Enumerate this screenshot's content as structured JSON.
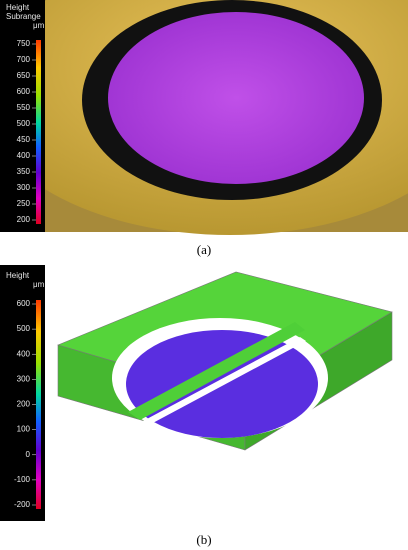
{
  "panels": [
    {
      "label": "(a)",
      "colorbar": {
        "title": [
          "Height",
          "Subrange"
        ],
        "unit": "μm",
        "ticks": [
          750,
          700,
          650,
          600,
          550,
          500,
          450,
          400,
          350,
          300,
          250,
          200
        ]
      }
    },
    {
      "label": "(b)",
      "colorbar": {
        "title": [
          "Height"
        ],
        "unit": "μm",
        "ticks": [
          600,
          500,
          400,
          300,
          200,
          100,
          0,
          -100,
          -200
        ]
      }
    }
  ]
}
